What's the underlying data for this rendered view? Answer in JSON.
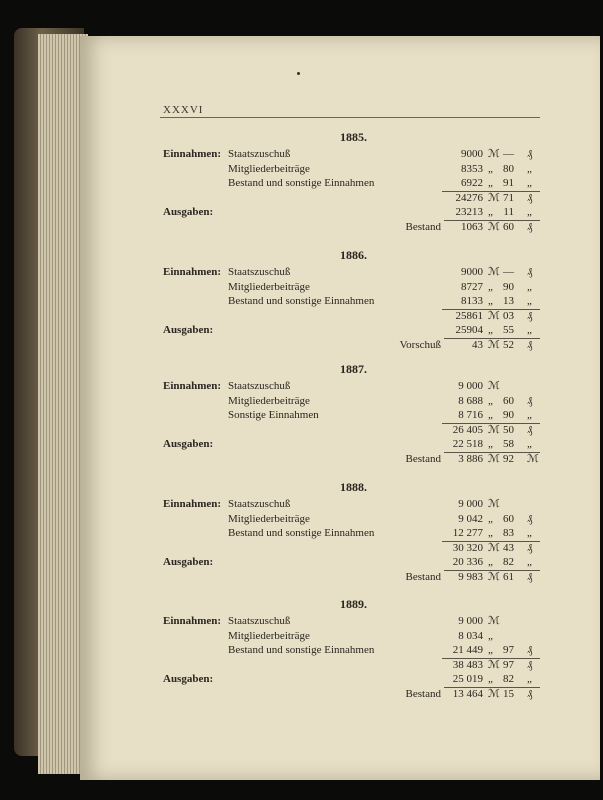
{
  "page_number": "XXXVI",
  "years": [
    {
      "title": "1885.",
      "rows": [
        {
          "label": "Einnahmen:",
          "item": "Staatszuschuß",
          "amount": "9000",
          "unit": "ℳ",
          "pf": "—",
          "pf_unit": "₰"
        },
        {
          "item": "Mitgliederbeiträge",
          "amount": "8353",
          "unit": "„",
          "pf": "80",
          "pf_unit": "„"
        },
        {
          "item": "Bestand und sonstige Einnahmen",
          "amount": "6922",
          "unit": "„",
          "pf": "91",
          "pf_unit": "„"
        },
        {
          "amount": "24276",
          "unit": "ℳ",
          "pf": "71",
          "pf_unit": "₰",
          "rule": "sum"
        },
        {
          "label": "Ausgaben:",
          "amount": "23213",
          "unit": "„",
          "pf": "11",
          "pf_unit": "„"
        },
        {
          "side": "Bestand",
          "amount": "1063",
          "unit": "ℳ",
          "pf": "60",
          "pf_unit": "₰",
          "rule": "result"
        }
      ]
    },
    {
      "title": "1886.",
      "rows": [
        {
          "label": "Einnahmen:",
          "item": "Staatszuschuß",
          "amount": "9000",
          "unit": "ℳ",
          "pf": "—",
          "pf_unit": "₰"
        },
        {
          "item": "Mitgliederbeiträge",
          "amount": "8727",
          "unit": "„",
          "pf": "90",
          "pf_unit": "„"
        },
        {
          "item": "Bestand und sonstige Einnahmen",
          "amount": "8133",
          "unit": "„",
          "pf": "13",
          "pf_unit": "„"
        },
        {
          "amount": "25861",
          "unit": "ℳ",
          "pf": "03",
          "pf_unit": "₰",
          "rule": "sum"
        },
        {
          "label": "Ausgaben:",
          "amount": "25904",
          "unit": "„",
          "pf": "55",
          "pf_unit": "„"
        },
        {
          "side": "Vorschuß",
          "amount": "43",
          "unit": "ℳ",
          "pf": "52",
          "pf_unit": "₰",
          "rule": "result"
        }
      ]
    },
    {
      "title": "1887.",
      "rows": [
        {
          "label": "Einnahmen:",
          "item": "Staatszuschuß",
          "amount": "9 000",
          "unit": "ℳ",
          "pf": "",
          "pf_unit": ""
        },
        {
          "item": "Mitgliederbeiträge",
          "amount": "8 688",
          "unit": "„",
          "pf": "60",
          "pf_unit": "₰"
        },
        {
          "item": "Sonstige Einnahmen",
          "amount": "8 716",
          "unit": "„",
          "pf": "90",
          "pf_unit": "„"
        },
        {
          "amount": "26 405",
          "unit": "ℳ",
          "pf": "50",
          "pf_unit": "₰",
          "rule": "sum"
        },
        {
          "label": "Ausgaben:",
          "amount": "22 518",
          "unit": "„",
          "pf": "58",
          "pf_unit": "„"
        },
        {
          "side": "Bestand",
          "amount": "3 886",
          "unit": "ℳ",
          "pf": "92",
          "pf_unit": "ℳ",
          "rule": "result"
        }
      ]
    },
    {
      "title": "1888.",
      "rows": [
        {
          "label": "Einnahmen:",
          "item": "Staatszuschuß",
          "amount": "9 000",
          "unit": "ℳ",
          "pf": "",
          "pf_unit": ""
        },
        {
          "item": "Mitgliederbeiträge",
          "amount": "9 042",
          "unit": "„",
          "pf": "60",
          "pf_unit": "₰"
        },
        {
          "item": "Bestand und sonstige Einnahmen",
          "amount": "12 277",
          "unit": "„",
          "pf": "83",
          "pf_unit": "„"
        },
        {
          "amount": "30 320",
          "unit": "ℳ",
          "pf": "43",
          "pf_unit": "₰",
          "rule": "sum"
        },
        {
          "label": "Ausgaben:",
          "amount": "20 336",
          "unit": "„",
          "pf": "82",
          "pf_unit": "„"
        },
        {
          "side": "Bestand",
          "amount": "9 983",
          "unit": "ℳ",
          "pf": "61",
          "pf_unit": "₰",
          "rule": "result"
        }
      ]
    },
    {
      "title": "1889.",
      "rows": [
        {
          "label": "Einnahmen:",
          "item": "Staatszuschuß",
          "amount": "9 000",
          "unit": "ℳ",
          "pf": "",
          "pf_unit": ""
        },
        {
          "item": "Mitgliederbeiträge",
          "amount": "8 034",
          "unit": "„",
          "pf": "",
          "pf_unit": ""
        },
        {
          "item": "Bestand und sonstige Einnahmen",
          "amount": "21 449",
          "unit": "„",
          "pf": "97",
          "pf_unit": "₰"
        },
        {
          "amount": "38 483",
          "unit": "ℳ",
          "pf": "97",
          "pf_unit": "₰",
          "rule": "sum"
        },
        {
          "label": "Ausgaben:",
          "amount": "25 019",
          "unit": "„",
          "pf": "82",
          "pf_unit": "„"
        },
        {
          "side": "Bestand",
          "amount": "13 464",
          "unit": "ℳ",
          "pf": "15",
          "pf_unit": "₰",
          "rule": "result"
        }
      ]
    }
  ]
}
